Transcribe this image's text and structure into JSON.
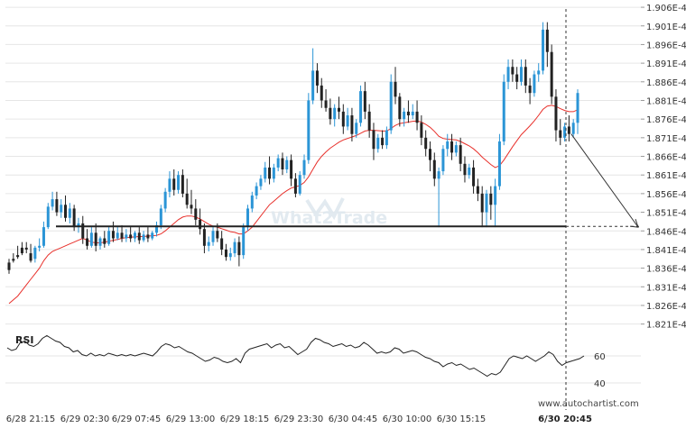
{
  "chart_data": {
    "type": "candlestick",
    "y_axis": {
      "range": [
        1.8185,
        1.9065
      ],
      "unit": "E-4",
      "ticks": [
        "1.906E-4",
        "1.901E-4",
        "1.896E-4",
        "1.891E-4",
        "1.886E-4",
        "1.881E-4",
        "1.876E-4",
        "1.871E-4",
        "1.866E-4",
        "1.861E-4",
        "1.856E-4",
        "1.851E-4",
        "1.846E-4",
        "1.841E-4",
        "1.836E-4",
        "1.831E-4",
        "1.826E-4",
        "1.821E-4"
      ],
      "tick_values": [
        1.906,
        1.901,
        1.896,
        1.891,
        1.886,
        1.881,
        1.876,
        1.871,
        1.866,
        1.861,
        1.856,
        1.851,
        1.846,
        1.841,
        1.836,
        1.831,
        1.826,
        1.821
      ]
    },
    "x_axis": {
      "ticks": [
        "6/28 21:15",
        "6/29 02:30",
        "6/29 07:45",
        "6/29 13:00",
        "6/29 18:15",
        "6/29 23:30",
        "6/30 04:45",
        "6/30 10:00",
        "6/30 15:15",
        "6/30 20:45"
      ]
    },
    "candles": [
      [
        1.8375,
        1.8385,
        1.8355,
        1.8345
      ],
      [
        1.8385,
        1.84,
        1.838,
        1.8375
      ],
      [
        1.8395,
        1.842,
        1.839,
        1.8385
      ],
      [
        1.8415,
        1.843,
        1.84,
        1.8395
      ],
      [
        1.8415,
        1.843,
        1.841,
        1.84
      ],
      [
        1.84,
        1.8425,
        1.838,
        1.8375
      ],
      [
        1.8385,
        1.842,
        1.8415,
        1.8375
      ],
      [
        1.8415,
        1.844,
        1.842,
        1.8405
      ],
      [
        1.842,
        1.8485,
        1.847,
        1.8415
      ],
      [
        1.847,
        1.8535,
        1.8525,
        1.8465
      ],
      [
        1.8525,
        1.8565,
        1.8545,
        1.8515
      ],
      [
        1.8545,
        1.8565,
        1.851,
        1.85
      ],
      [
        1.851,
        1.8545,
        1.853,
        1.8495
      ],
      [
        1.853,
        1.8555,
        1.8495,
        1.8485
      ],
      [
        1.8495,
        1.8535,
        1.852,
        1.848
      ],
      [
        1.852,
        1.853,
        1.847,
        1.846
      ],
      [
        1.847,
        1.8495,
        1.848,
        1.8455
      ],
      [
        1.848,
        1.85,
        1.844,
        1.8425
      ],
      [
        1.844,
        1.8465,
        1.842,
        1.841
      ],
      [
        1.842,
        1.847,
        1.8455,
        1.8415
      ],
      [
        1.8455,
        1.848,
        1.842,
        1.8405
      ],
      [
        1.842,
        1.8445,
        1.844,
        1.841
      ],
      [
        1.844,
        1.846,
        1.8425,
        1.8415
      ],
      [
        1.8425,
        1.847,
        1.846,
        1.842
      ],
      [
        1.846,
        1.8485,
        1.844,
        1.843
      ],
      [
        1.844,
        1.847,
        1.8455,
        1.8435
      ],
      [
        1.8455,
        1.8475,
        1.844,
        1.843
      ],
      [
        1.844,
        1.8465,
        1.845,
        1.843
      ],
      [
        1.845,
        1.847,
        1.844,
        1.843
      ],
      [
        1.844,
        1.846,
        1.8455,
        1.843
      ],
      [
        1.8455,
        1.847,
        1.8435,
        1.8425
      ],
      [
        1.8435,
        1.846,
        1.845,
        1.843
      ],
      [
        1.845,
        1.847,
        1.844,
        1.843
      ],
      [
        1.844,
        1.846,
        1.8455,
        1.8435
      ],
      [
        1.8455,
        1.8485,
        1.8475,
        1.8445
      ],
      [
        1.8475,
        1.853,
        1.852,
        1.8465
      ],
      [
        1.852,
        1.8575,
        1.8565,
        1.851
      ],
      [
        1.8565,
        1.862,
        1.86,
        1.855
      ],
      [
        1.86,
        1.8625,
        1.857,
        1.8555
      ],
      [
        1.857,
        1.862,
        1.861,
        1.856
      ],
      [
        1.861,
        1.8625,
        1.856,
        1.855
      ],
      [
        1.856,
        1.86,
        1.853,
        1.852
      ],
      [
        1.853,
        1.857,
        1.852,
        1.8505
      ],
      [
        1.852,
        1.8545,
        1.849,
        1.8475
      ],
      [
        1.849,
        1.852,
        1.8465,
        1.845
      ],
      [
        1.8465,
        1.848,
        1.842,
        1.84
      ],
      [
        1.842,
        1.8445,
        1.843,
        1.8405
      ],
      [
        1.843,
        1.847,
        1.846,
        1.842
      ],
      [
        1.846,
        1.848,
        1.844,
        1.843
      ],
      [
        1.844,
        1.846,
        1.841,
        1.8395
      ],
      [
        1.841,
        1.8425,
        1.839,
        1.838
      ],
      [
        1.839,
        1.8415,
        1.84,
        1.838
      ],
      [
        1.84,
        1.844,
        1.843,
        1.839
      ],
      [
        1.843,
        1.8445,
        1.8395,
        1.8365
      ],
      [
        1.8395,
        1.848,
        1.847,
        1.8385
      ],
      [
        1.847,
        1.853,
        1.852,
        1.846
      ],
      [
        1.852,
        1.8565,
        1.8555,
        1.851
      ],
      [
        1.8555,
        1.859,
        1.858,
        1.8545
      ],
      [
        1.858,
        1.861,
        1.86,
        1.857
      ],
      [
        1.86,
        1.8645,
        1.863,
        1.859
      ],
      [
        1.863,
        1.866,
        1.86,
        1.8585
      ],
      [
        1.86,
        1.864,
        1.863,
        1.859
      ],
      [
        1.863,
        1.8665,
        1.8655,
        1.862
      ],
      [
        1.8655,
        1.867,
        1.8625,
        1.861
      ],
      [
        1.8625,
        1.866,
        1.865,
        1.8615
      ],
      [
        1.865,
        1.8665,
        1.86,
        1.858
      ],
      [
        1.86,
        1.8615,
        1.856,
        1.855
      ],
      [
        1.856,
        1.862,
        1.861,
        1.8555
      ],
      [
        1.861,
        1.8665,
        1.865,
        1.86
      ],
      [
        1.865,
        1.883,
        1.881,
        1.864
      ],
      [
        1.881,
        1.895,
        1.889,
        1.88
      ],
      [
        1.889,
        1.891,
        1.885,
        1.883
      ],
      [
        1.885,
        1.887,
        1.881,
        1.879
      ],
      [
        1.881,
        1.884,
        1.879,
        1.878
      ],
      [
        1.879,
        1.8815,
        1.876,
        1.8745
      ],
      [
        1.876,
        1.88,
        1.879,
        1.874
      ],
      [
        1.879,
        1.882,
        1.878,
        1.876
      ],
      [
        1.878,
        1.88,
        1.874,
        1.872
      ],
      [
        1.874,
        1.879,
        1.877,
        1.873
      ],
      [
        1.877,
        1.879,
        1.872,
        1.87
      ],
      [
        1.872,
        1.876,
        1.875,
        1.871
      ],
      [
        1.875,
        1.885,
        1.8835,
        1.874
      ],
      [
        1.8835,
        1.886,
        1.878,
        1.876
      ],
      [
        1.878,
        1.88,
        1.873,
        1.871
      ],
      [
        1.873,
        1.875,
        1.868,
        1.865
      ],
      [
        1.868,
        1.872,
        1.871,
        1.867
      ],
      [
        1.871,
        1.873,
        1.869,
        1.868
      ],
      [
        1.869,
        1.874,
        1.873,
        1.868
      ],
      [
        1.873,
        1.888,
        1.886,
        1.872
      ],
      [
        1.886,
        1.89,
        1.882,
        1.88
      ],
      [
        1.882,
        1.883,
        1.876,
        1.874
      ],
      [
        1.876,
        1.879,
        1.878,
        1.874
      ],
      [
        1.878,
        1.881,
        1.877,
        1.875
      ],
      [
        1.877,
        1.88,
        1.878,
        1.876
      ],
      [
        1.878,
        1.881,
        1.875,
        1.873
      ],
      [
        1.875,
        1.877,
        1.871,
        1.869
      ],
      [
        1.871,
        1.873,
        1.868,
        1.866
      ],
      [
        1.868,
        1.87,
        1.865,
        1.862
      ],
      [
        1.865,
        1.867,
        1.86,
        1.858
      ],
      [
        1.86,
        1.863,
        1.862,
        1.847
      ],
      [
        1.862,
        1.869,
        1.868,
        1.861
      ],
      [
        1.868,
        1.872,
        1.87,
        1.866
      ],
      [
        1.87,
        1.872,
        1.867,
        1.865
      ],
      [
        1.867,
        1.87,
        1.869,
        1.866
      ],
      [
        1.869,
        1.871,
        1.864,
        1.862
      ],
      [
        1.864,
        1.866,
        1.861,
        1.859
      ],
      [
        1.861,
        1.864,
        1.863,
        1.86
      ],
      [
        1.863,
        1.865,
        1.858,
        1.856
      ],
      [
        1.858,
        1.86,
        1.856,
        1.854
      ],
      [
        1.856,
        1.858,
        1.851,
        1.847
      ],
      [
        1.851,
        1.857,
        1.856,
        1.847
      ],
      [
        1.856,
        1.858,
        1.853,
        1.849
      ],
      [
        1.853,
        1.86,
        1.858,
        1.847
      ],
      [
        1.858,
        1.872,
        1.87,
        1.857
      ],
      [
        1.87,
        1.888,
        1.886,
        1.869
      ],
      [
        1.886,
        1.892,
        1.89,
        1.884
      ],
      [
        1.89,
        1.892,
        1.888,
        1.886
      ],
      [
        1.888,
        1.89,
        1.886,
        1.884
      ],
      [
        1.886,
        1.892,
        1.89,
        1.885
      ],
      [
        1.89,
        1.892,
        1.885,
        1.883
      ],
      [
        1.885,
        1.887,
        1.883,
        1.88
      ],
      [
        1.883,
        1.889,
        1.888,
        1.882
      ],
      [
        1.888,
        1.891,
        1.889,
        1.886
      ],
      [
        1.889,
        1.902,
        1.9,
        1.888
      ],
      [
        1.9,
        1.902,
        1.894,
        1.89
      ],
      [
        1.894,
        1.896,
        1.882,
        1.88
      ],
      [
        1.882,
        1.884,
        1.873,
        1.87
      ],
      [
        1.873,
        1.876,
        1.871,
        1.869
      ],
      [
        1.871,
        1.875,
        1.874,
        1.87
      ],
      [
        1.874,
        1.877,
        1.872,
        1.87
      ],
      [
        1.872,
        1.876,
        1.875,
        1.871
      ],
      [
        1.875,
        1.884,
        1.883,
        1.872
      ]
    ],
    "moving_average": [
      1.8265,
      1.8275,
      1.8285,
      1.83,
      1.8315,
      1.833,
      1.8345,
      1.836,
      1.838,
      1.8395,
      1.8405,
      1.841,
      1.8415,
      1.842,
      1.8425,
      1.843,
      1.8435,
      1.844,
      1.8435,
      1.843,
      1.8428,
      1.8428,
      1.843,
      1.8432,
      1.8435,
      1.8437,
      1.844,
      1.8442,
      1.8443,
      1.8444,
      1.8445,
      1.8445,
      1.8446,
      1.8447,
      1.8448,
      1.8452,
      1.846,
      1.847,
      1.848,
      1.849,
      1.8497,
      1.85,
      1.85,
      1.8497,
      1.8492,
      1.8485,
      1.8478,
      1.8473,
      1.847,
      1.8466,
      1.8462,
      1.8458,
      1.8456,
      1.8452,
      1.8452,
      1.846,
      1.847,
      1.8485,
      1.85,
      1.8515,
      1.853,
      1.854,
      1.855,
      1.856,
      1.8568,
      1.8575,
      1.8578,
      1.8582,
      1.859,
      1.8605,
      1.8625,
      1.8645,
      1.866,
      1.8672,
      1.8682,
      1.869,
      1.8698,
      1.8704,
      1.8708,
      1.8712,
      1.8716,
      1.8722,
      1.8728,
      1.873,
      1.873,
      1.8729,
      1.8728,
      1.8728,
      1.8735,
      1.8743,
      1.8748,
      1.875,
      1.8752,
      1.8754,
      1.8755,
      1.8752,
      1.8746,
      1.8738,
      1.8727,
      1.8714,
      1.8708,
      1.8706,
      1.8705,
      1.8704,
      1.87,
      1.8694,
      1.8688,
      1.868,
      1.867,
      1.8658,
      1.8648,
      1.8638,
      1.863,
      1.8635,
      1.865,
      1.8668,
      1.8686,
      1.8702,
      1.8718,
      1.873,
      1.8742,
      1.8755,
      1.877,
      1.8786,
      1.8795,
      1.8797,
      1.8794,
      1.8788,
      1.8783,
      1.878,
      1.878,
      1.8785
    ],
    "horizontal_level": 1.8472,
    "projection": {
      "from": [
        132,
        1.872
      ],
      "to": [
        168,
        1.847
      ]
    },
    "rsi": {
      "label": "RSI",
      "range": [
        30,
        80
      ],
      "ticks": [
        "60",
        "40"
      ],
      "tick_values": [
        60,
        40
      ],
      "values": [
        66,
        64,
        65,
        70,
        71,
        68,
        67,
        69,
        73,
        75,
        73,
        71,
        70,
        67,
        66,
        63,
        64,
        61,
        60,
        62,
        60,
        61,
        60,
        62,
        61,
        60,
        61,
        60,
        61,
        60,
        61,
        62,
        61,
        60,
        63,
        67,
        69,
        68,
        66,
        67,
        65,
        63,
        62,
        60,
        58,
        56,
        57,
        59,
        58,
        56,
        55,
        56,
        58,
        55,
        62,
        65,
        66,
        67,
        68,
        69,
        66,
        68,
        69,
        66,
        67,
        64,
        61,
        63,
        65,
        70,
        73,
        72,
        70,
        69,
        67,
        68,
        69,
        67,
        68,
        66,
        67,
        70,
        68,
        65,
        62,
        63,
        62,
        63,
        66,
        65,
        62,
        63,
        64,
        63,
        61,
        59,
        58,
        56,
        55,
        52,
        54,
        55,
        53,
        54,
        52,
        50,
        51,
        49,
        47,
        45,
        47,
        46,
        48,
        53,
        58,
        60,
        59,
        58,
        60,
        58,
        56,
        58,
        60,
        63,
        61,
        56,
        53,
        55,
        56,
        57,
        58,
        60
      ]
    },
    "watermark": "What2Trade",
    "credit": "www.autochartist.com"
  }
}
